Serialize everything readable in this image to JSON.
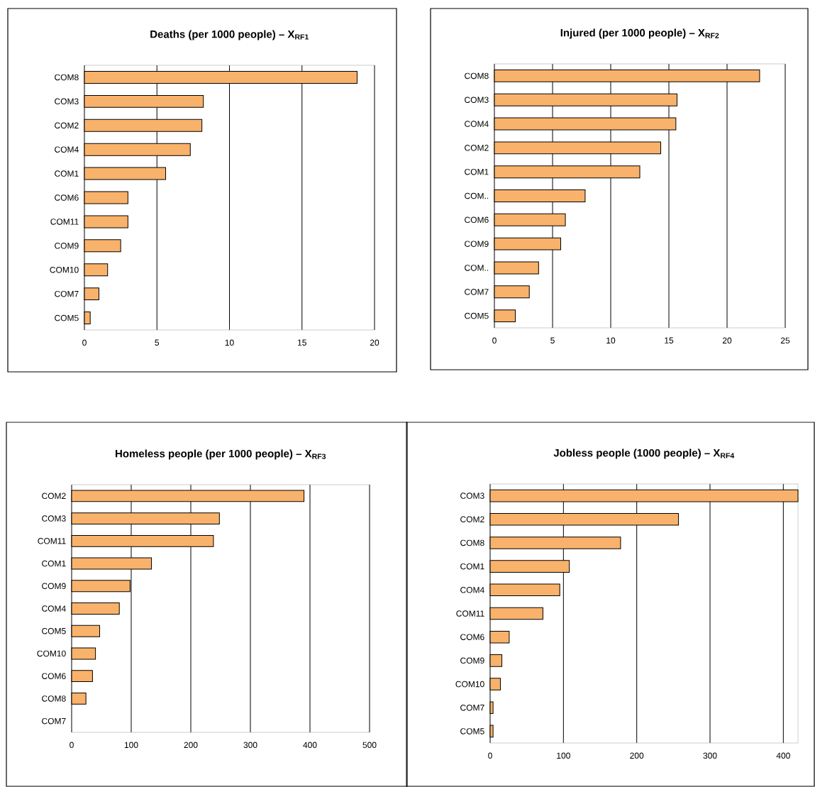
{
  "chart_data": [
    {
      "type": "bar",
      "orientation": "horizontal",
      "title": "Deaths (per 1000 people) – X$_{RF1}$",
      "categories": [
        "COM8",
        "COM3",
        "COM2",
        "COM4",
        "COM1",
        "COM6",
        "COM11",
        "COM9",
        "COM10",
        "COM7",
        "COM5"
      ],
      "values": [
        18.8,
        8.2,
        8.1,
        7.3,
        5.6,
        3.0,
        3.0,
        2.5,
        1.6,
        1.0,
        0.4
      ],
      "color": "#f9b26b",
      "xlim": [
        0,
        20
      ],
      "xticks": [
        0,
        5,
        10,
        15,
        20
      ],
      "grid": "x"
    },
    {
      "type": "bar",
      "orientation": "horizontal",
      "title": "Injured (per 1000 people) – X$_{RF2}$",
      "categories": [
        "COM8",
        "COM3",
        "COM4",
        "COM2",
        "COM1",
        "COM..",
        "COM6",
        "COM9",
        "COM..",
        "COM7",
        "COM5"
      ],
      "values": [
        22.8,
        15.7,
        15.6,
        14.3,
        12.5,
        7.8,
        6.1,
        5.7,
        3.8,
        3.0,
        1.8
      ],
      "color": "#f9b26b",
      "xlim": [
        0,
        25
      ],
      "xticks": [
        0,
        5,
        10,
        15,
        20,
        25
      ],
      "grid": "x"
    },
    {
      "type": "bar",
      "orientation": "horizontal",
      "title": "Homeless people (per 1000 people) – X$_{RF3}$",
      "categories": [
        "COM2",
        "COM3",
        "COM11",
        "COM1",
        "COM9",
        "COM4",
        "COM5",
        "COM10",
        "COM6",
        "COM8",
        "COM7"
      ],
      "values": [
        390,
        248,
        238,
        134,
        98,
        80,
        47,
        40,
        35,
        24,
        null
      ],
      "color": "#f9b26b",
      "xlim": [
        0,
        500
      ],
      "xticks": [
        0,
        100,
        200,
        300,
        400,
        500
      ],
      "grid": "x"
    },
    {
      "type": "bar",
      "orientation": "horizontal",
      "title": "Jobless people (1000 people) – X$_{RF4}$",
      "categories": [
        "COM3",
        "COM2",
        "COM8",
        "COM1",
        "COM4",
        "COM11",
        "COM6",
        "COM9",
        "COM10",
        "COM7",
        "COM5"
      ],
      "values": [
        420,
        257,
        178,
        108,
        95,
        72,
        26,
        16,
        14,
        4,
        4
      ],
      "color": "#f9b26b",
      "xlim": [
        0,
        420
      ],
      "xticks": [
        0,
        100,
        200,
        300,
        400
      ],
      "grid": "x"
    }
  ]
}
